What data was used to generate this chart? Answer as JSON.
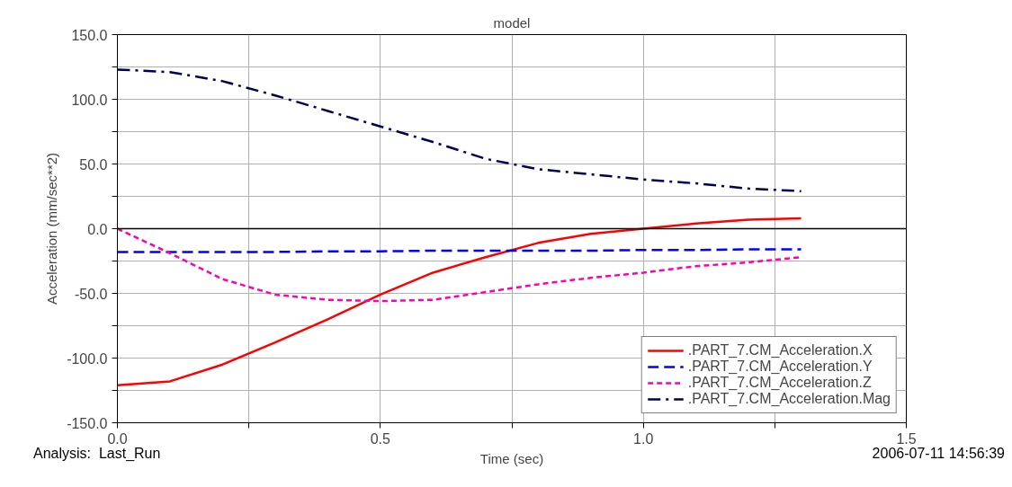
{
  "chart_data": {
    "type": "line",
    "title": "model",
    "xlabel": "Time (sec)",
    "ylabel": "Acceleration (mm/sec**2)",
    "x": [
      0,
      0.1,
      0.2,
      0.3,
      0.4,
      0.5,
      0.6,
      0.7,
      0.8,
      0.9,
      1.0,
      1.1,
      1.2,
      1.3
    ],
    "series": [
      {
        "name": ".PART_7.CM_Acceleration.X",
        "color": "#ff0000",
        "line_style": "solid",
        "values": [
          -121,
          -118,
          -105,
          -88,
          -70,
          -51,
          -34,
          -22,
          -11,
          -4,
          0,
          4,
          7,
          8
        ]
      },
      {
        "name": ".PART_7.CM_Acceleration.Y",
        "color": "#0000ff",
        "line_style": "dashed",
        "values": [
          -18,
          -18,
          -18,
          -18,
          -17.5,
          -17.5,
          -17,
          -17,
          -17,
          -17,
          -16.5,
          -16.5,
          -16,
          -16
        ]
      },
      {
        "name": ".PART_7.CM_Acceleration.Z",
        "color": "#ff00aa",
        "line_style": "dotted",
        "values": [
          0,
          -19,
          -39,
          -51,
          -55,
          -56,
          -55,
          -49,
          -43,
          -38,
          -34,
          -29,
          -26,
          -22
        ]
      },
      {
        "name": ".PART_7.CM_Acceleration.Mag",
        "color": "#000050",
        "line_style": "dashdot",
        "values": [
          123,
          121,
          114,
          103,
          91,
          79,
          67,
          54,
          46,
          42,
          38,
          35,
          31,
          29
        ]
      }
    ],
    "xlim": [
      0,
      1.5
    ],
    "ylim": [
      -150,
      150
    ],
    "xticks": [
      {
        "value": 0,
        "label": "0.0"
      },
      {
        "value": 0.25,
        "label": null
      },
      {
        "value": 0.5,
        "label": "0.5"
      },
      {
        "value": 0.75,
        "label": null
      },
      {
        "value": 1.0,
        "label": "1.0"
      },
      {
        "value": 1.25,
        "label": null
      },
      {
        "value": 1.5,
        "label": "1.5"
      }
    ],
    "yticks": [
      {
        "value": -150,
        "label": "-150.0"
      },
      {
        "value": -125,
        "label": null
      },
      {
        "value": -100,
        "label": "-100.0"
      },
      {
        "value": -75,
        "label": null
      },
      {
        "value": -50,
        "label": "-50.0"
      },
      {
        "value": -25,
        "label": null
      },
      {
        "value": 0,
        "label": "0.0"
      },
      {
        "value": 25,
        "label": null
      },
      {
        "value": 50,
        "label": "50.0"
      },
      {
        "value": 75,
        "label": null
      },
      {
        "value": 100,
        "label": "100.0"
      },
      {
        "value": 125,
        "label": null
      },
      {
        "value": 150,
        "label": "150.0"
      }
    ],
    "ref_lines": [
      {
        "axis": "y",
        "value": 0,
        "color": "#000000"
      }
    ],
    "annotations": [
      "Analysis:  Last_Run",
      "2006-07-11 14:56:39"
    ],
    "grid": true,
    "legend": "bottom right",
    "marker": "none"
  }
}
